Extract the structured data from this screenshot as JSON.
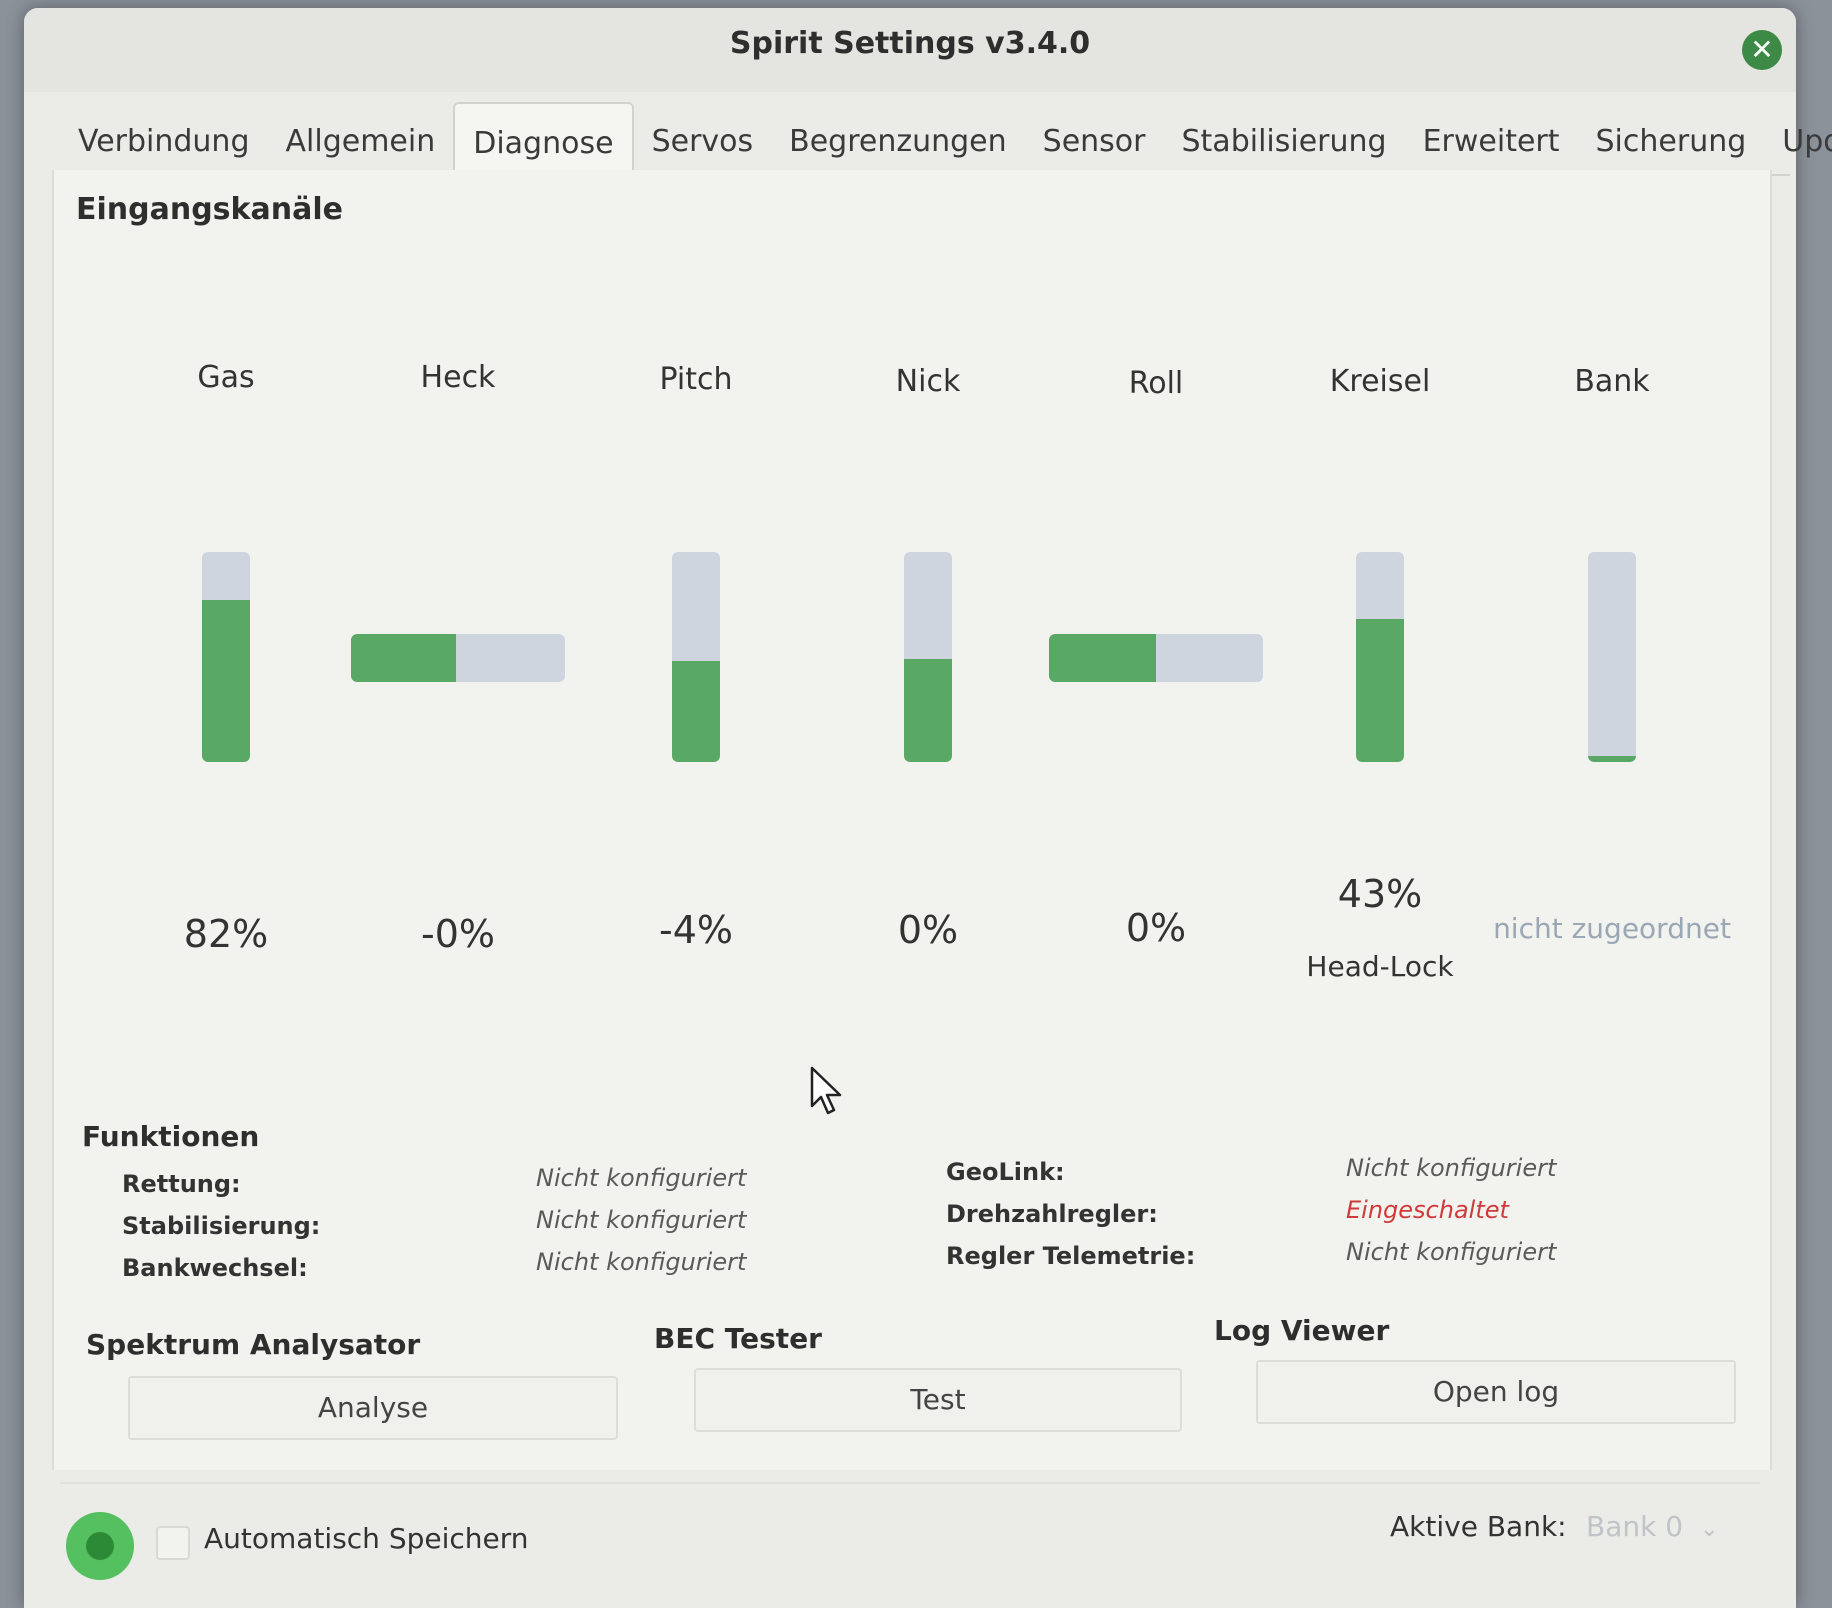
{
  "window": {
    "title": "Spirit Settings v3.4.0",
    "close_glyph": "✕"
  },
  "tabs": [
    {
      "label": "Verbindung"
    },
    {
      "label": "Allgemein"
    },
    {
      "label": "Diagnose"
    },
    {
      "label": "Servos"
    },
    {
      "label": "Begrenzungen"
    },
    {
      "label": "Sensor"
    },
    {
      "label": "Stabilisierung"
    },
    {
      "label": "Erweitert"
    },
    {
      "label": "Sicherung"
    },
    {
      "label": "Update"
    }
  ],
  "active_tab": "Diagnose",
  "input_channels": {
    "title": "Eingangskanäle",
    "channels": [
      {
        "name": "Gas",
        "value": "82%",
        "level": 0.77,
        "orientation": "vertical"
      },
      {
        "name": "Heck",
        "value": "-0%",
        "level": 0.49,
        "orientation": "horizontal"
      },
      {
        "name": "Pitch",
        "value": "-4%",
        "level": 0.48,
        "orientation": "vertical"
      },
      {
        "name": "Nick",
        "value": "0%",
        "level": 0.49,
        "orientation": "vertical"
      },
      {
        "name": "Roll",
        "value": "0%",
        "level": 0.5,
        "orientation": "horizontal"
      },
      {
        "name": "Kreisel",
        "value": "43%",
        "sub": "Head-Lock",
        "level": 0.68,
        "orientation": "vertical"
      },
      {
        "name": "Bank",
        "value": "nicht zugeordnet",
        "level": 0.03,
        "orientation": "vertical"
      }
    ],
    "bar_color": "#5aa865",
    "track_color": "#cfd5de"
  },
  "functions": {
    "title": "Funktionen",
    "left": [
      {
        "label": "Rettung:",
        "value": "Nicht konfiguriert"
      },
      {
        "label": "Stabilisierung:",
        "value": "Nicht konfiguriert"
      },
      {
        "label": "Bankwechsel:",
        "value": "Nicht konfiguriert"
      }
    ],
    "right": [
      {
        "label": "GeoLink:",
        "value": "Nicht konfiguriert"
      },
      {
        "label": "Drehzahlregler:",
        "value": "Eingeschaltet"
      },
      {
        "label": "Regler Telemetrie:",
        "value": "Nicht konfiguriert"
      }
    ]
  },
  "tools": {
    "spectrum": {
      "title": "Spektrum Analysator",
      "button": "Analyse"
    },
    "bec": {
      "title": "BEC Tester",
      "button": "Test"
    },
    "log": {
      "title": "Log Viewer",
      "button": "Open log"
    }
  },
  "footer": {
    "auto_save_label": "Automatisch Speichern",
    "auto_save_checked": false,
    "active_bank_label": "Aktive Bank:",
    "active_bank_value": "Bank 0",
    "status_color": "#55c060"
  }
}
